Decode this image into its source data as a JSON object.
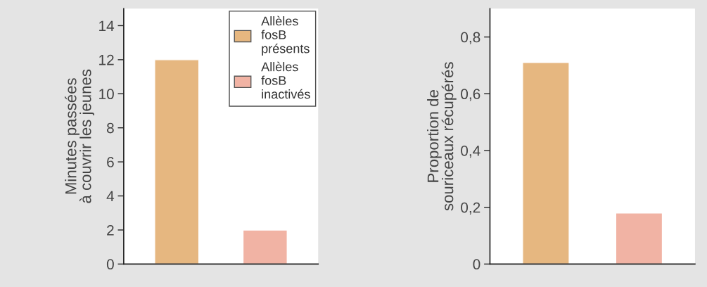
{
  "chart_data": [
    {
      "type": "bar",
      "ylabel": "Minutes passées\nà couvrir les jeunes",
      "categories": [
        null,
        null
      ],
      "series": [
        {
          "name": "Allèles fosB présents",
          "color": "#e6b780",
          "values": [
            12,
            null
          ]
        },
        {
          "name": "Allèles fosB inactivés",
          "color": "#f1b3a4",
          "values": [
            null,
            2
          ]
        }
      ],
      "ylim": [
        0,
        15
      ],
      "yticks": [
        0,
        2,
        4,
        6,
        8,
        10,
        12,
        14
      ],
      "legend": "top right",
      "grid": false
    },
    {
      "type": "bar",
      "ylabel": "Proportion de\nsouriceaux récupérés",
      "categories": [
        null,
        null
      ],
      "series": [
        {
          "color": "#e6b780",
          "values": [
            0.71,
            null
          ]
        },
        {
          "color": "#f1b3a4",
          "values": [
            null,
            0.18
          ]
        }
      ],
      "ylim": [
        0,
        0.9
      ],
      "yticks": [
        0,
        {
          "value": 0.2,
          "label": "0,2"
        },
        {
          "value": 0.4,
          "label": "0,4"
        },
        {
          "value": 0.6,
          "label": "0,6"
        },
        {
          "value": 0.8,
          "label": "0,8"
        }
      ],
      "legend": false,
      "grid": false
    }
  ]
}
